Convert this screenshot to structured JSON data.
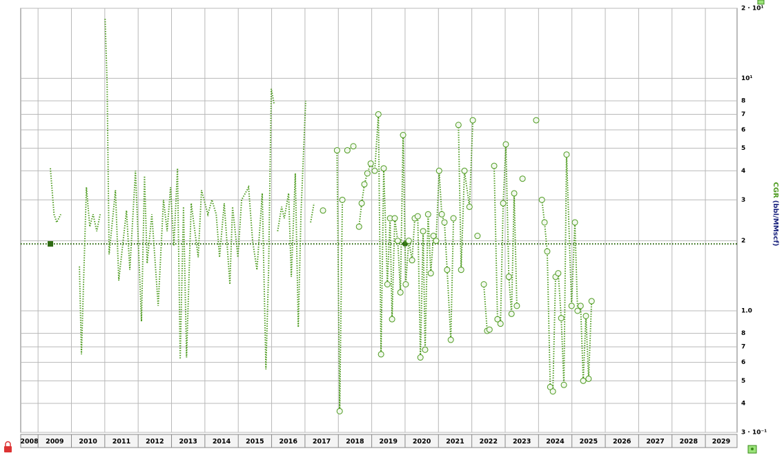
{
  "chart_data": {
    "type": "line",
    "y_scale": "log",
    "grid": true,
    "y_label": {
      "name": "CGR",
      "unit": "(bbl/MMscf)"
    },
    "xlim": [
      2008.48,
      2029.95
    ],
    "xticks": [
      2008,
      2009,
      2010,
      2011,
      2012,
      2013,
      2014,
      2015,
      2016,
      2017,
      2018,
      2019,
      2020,
      2021,
      2022,
      2023,
      2024,
      2025,
      2026,
      2027,
      2028,
      2029
    ],
    "ylim": [
      0.3,
      20
    ],
    "yticks": [
      {
        "value": 0.3,
        "label": "3 · 10⁻¹"
      },
      {
        "value": 0.4,
        "label": "4"
      },
      {
        "value": 0.5,
        "label": "5"
      },
      {
        "value": 0.6,
        "label": "6"
      },
      {
        "value": 0.7,
        "label": "7"
      },
      {
        "value": 0.8,
        "label": "8"
      },
      {
        "value": 1,
        "label": "1.0"
      },
      2,
      3,
      4,
      5,
      6,
      7,
      8,
      {
        "value": 10,
        "label": "10¹"
      },
      {
        "value": 20,
        "label": "2 · 10¹"
      }
    ],
    "reference_line": {
      "y": 1.94,
      "handles_x": [
        2009.37,
        2020.0
      ],
      "color": "#2e6b12"
    },
    "series": [
      {
        "color": "#4c9a1e",
        "marker": "none",
        "x": [
          2009.37,
          2009.48,
          2009.56,
          2009.68,
          null,
          2010.24,
          2010.3,
          2010.45,
          2010.55,
          2010.65,
          2010.76,
          2010.86,
          null,
          2011.01,
          2011.07,
          2011.13,
          2011.32,
          2011.42,
          2011.65,
          2011.75,
          2011.92,
          2012.1,
          2012.19,
          2012.27,
          2012.41,
          2012.6,
          2012.76,
          2012.87,
          2012.97,
          2013.07,
          2013.18,
          2013.26,
          2013.36,
          2013.45,
          2013.59,
          2013.8,
          2013.9,
          2014.09,
          2014.21,
          2014.34,
          2014.44,
          2014.58,
          2014.75,
          2014.83,
          2014.99,
          2015.1,
          2015.31,
          2015.43,
          2015.56,
          2015.72,
          2015.83,
          2015.91,
          2015.99,
          2016.07,
          null,
          2016.18,
          2016.3,
          2016.38,
          2016.51,
          2016.59,
          2016.71,
          2016.8,
          2016.88,
          2017.02,
          null,
          2017.17,
          2017.27
        ],
        "values": [
          4.1,
          2.6,
          2.4,
          2.6,
          null,
          1.55,
          0.65,
          3.4,
          2.3,
          2.6,
          2.2,
          2.6,
          null,
          18,
          9.5,
          1.75,
          3.3,
          1.35,
          2.7,
          1.5,
          4.0,
          0.9,
          3.8,
          1.6,
          2.6,
          1.05,
          3.0,
          2.2,
          3.4,
          1.9,
          4.1,
          0.62,
          2.8,
          0.63,
          2.9,
          1.7,
          3.3,
          2.6,
          3.0,
          2.6,
          1.7,
          2.9,
          1.3,
          2.8,
          1.7,
          3.0,
          3.4,
          2.0,
          1.5,
          3.2,
          0.56,
          1.5,
          9.0,
          7.8,
          null,
          2.2,
          2.8,
          2.5,
          3.2,
          1.4,
          3.9,
          0.85,
          2.6,
          8.0,
          null,
          2.4,
          2.9
        ]
      },
      {
        "color": "#4c9a1e",
        "marker": "circle",
        "x": [
          2017.54,
          null,
          2017.96,
          2018.04,
          2018.12,
          null,
          2018.27,
          2018.45,
          null,
          2018.62,
          2018.7,
          2018.78,
          2018.87,
          2018.97,
          2019.09,
          2019.2,
          2019.28,
          2019.36,
          2019.47,
          2019.55,
          2019.61,
          2019.69,
          2019.78,
          2019.86,
          2019.94,
          2020.02,
          2020.11,
          2020.21,
          2020.29,
          2020.38,
          2020.46,
          2020.54,
          2020.6,
          2020.69,
          2020.77,
          2020.85,
          2020.93,
          2021.02,
          2021.1,
          2021.18,
          2021.26,
          2021.37,
          2021.45,
          null,
          2021.6,
          2021.68,
          2021.78,
          2021.93,
          2022.03,
          null,
          2022.17,
          null,
          2022.36,
          2022.46,
          2022.53,
          null,
          2022.67,
          2022.77,
          2022.86,
          2022.94,
          2023.02,
          2023.11,
          2023.19,
          2023.27,
          2023.35,
          null,
          2023.52,
          null,
          2023.93,
          null,
          2024.1,
          2024.18,
          2024.26,
          2024.35,
          2024.43,
          2024.51,
          2024.59,
          2024.68,
          2024.76,
          2024.84,
          2024.99,
          2025.09,
          2025.17,
          2025.26,
          2025.34,
          2025.42,
          2025.5,
          2025.59
        ],
        "values": [
          2.7,
          null,
          4.9,
          0.37,
          3.0,
          null,
          4.9,
          5.1,
          null,
          2.3,
          2.9,
          3.5,
          3.9,
          4.3,
          4.0,
          7.0,
          0.65,
          4.1,
          1.3,
          2.5,
          0.92,
          2.5,
          2.0,
          1.2,
          5.7,
          1.3,
          2.0,
          1.65,
          2.5,
          2.55,
          0.63,
          2.2,
          0.68,
          2.6,
          1.45,
          2.1,
          2.0,
          4.0,
          2.6,
          2.4,
          1.5,
          0.75,
          2.5,
          null,
          6.3,
          1.5,
          4.0,
          2.8,
          6.6,
          null,
          2.1,
          null,
          1.3,
          0.82,
          0.83,
          null,
          4.2,
          0.92,
          0.88,
          2.9,
          5.2,
          1.4,
          0.97,
          3.2,
          1.05,
          null,
          3.7,
          null,
          6.6,
          null,
          3.0,
          2.4,
          1.8,
          0.47,
          0.45,
          1.4,
          1.45,
          0.93,
          0.48,
          4.7,
          1.05,
          2.4,
          1.0,
          1.05,
          0.5,
          0.95,
          0.51,
          1.1
        ]
      }
    ]
  }
}
